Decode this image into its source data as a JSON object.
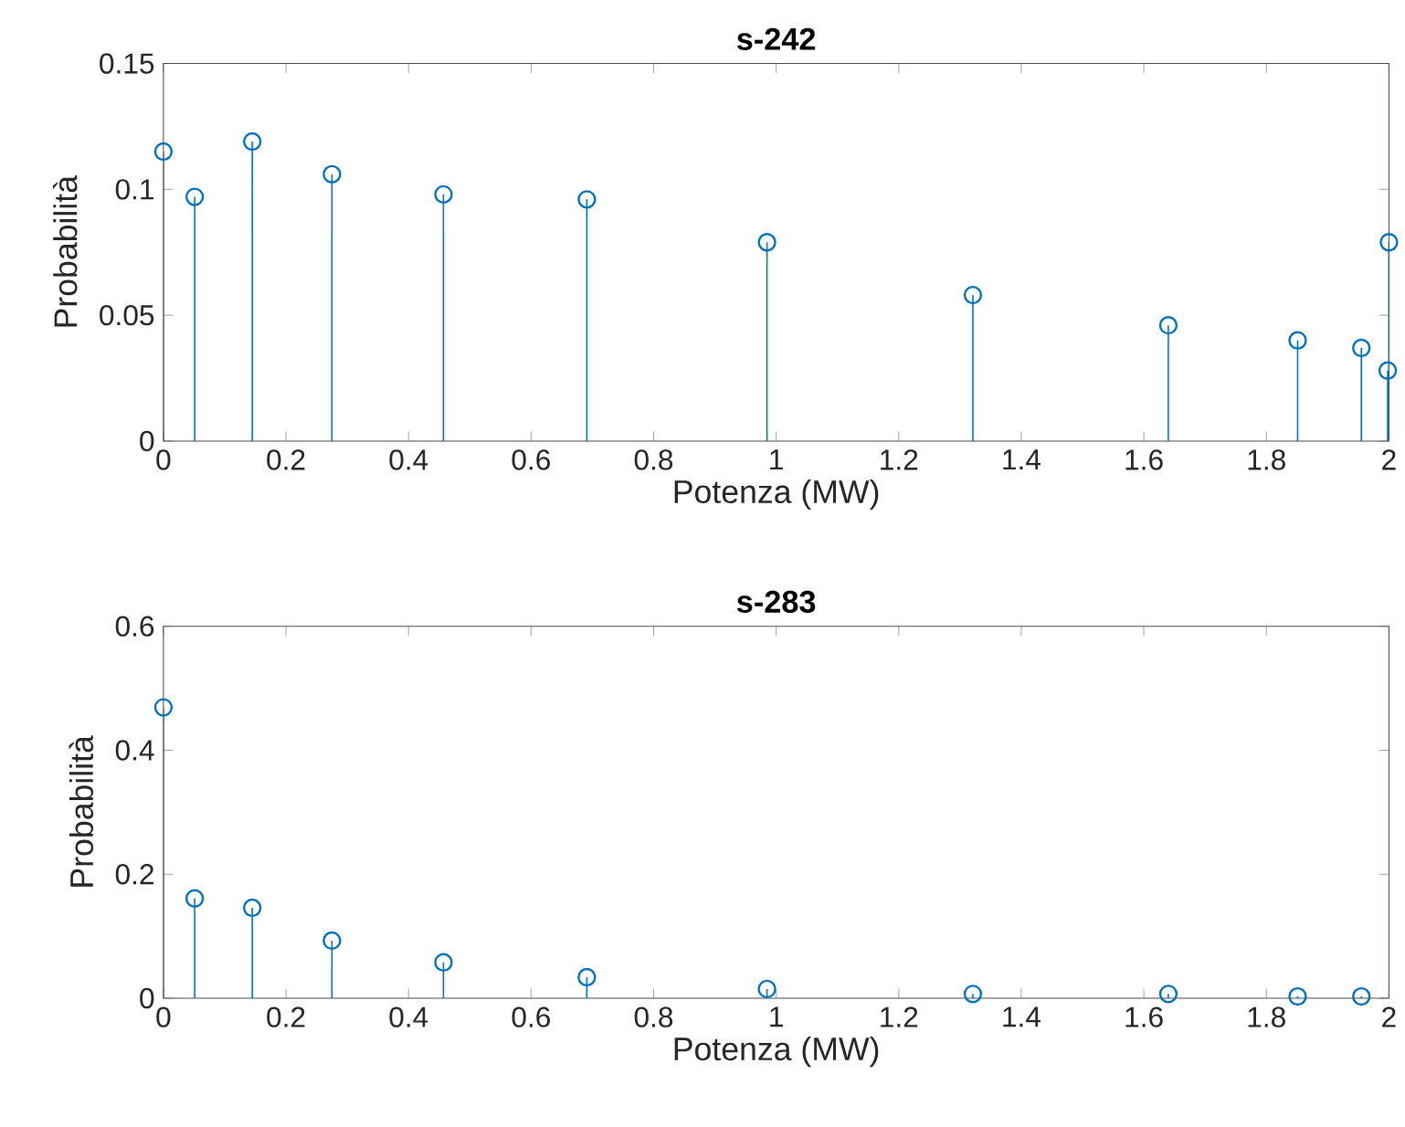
{
  "chart_data": [
    {
      "type": "lollipop",
      "title": "s-242",
      "xlabel": "Potenza (MW)",
      "ylabel": "Probabilità",
      "color": "#0072bd",
      "marker": "circle",
      "x": [
        0,
        0.051,
        0.145,
        0.275,
        0.457,
        0.691,
        0.985,
        1.321,
        1.64,
        1.851,
        1.955,
        1.998,
        2
      ],
      "values": [
        0.115,
        0.097,
        0.119,
        0.106,
        0.098,
        0.096,
        0.079,
        0.058,
        0.046,
        0.04,
        0.037,
        0.028,
        0.079
      ],
      "xlim": [
        0,
        2
      ],
      "ylim": [
        0,
        0.15
      ],
      "xticks": [
        0,
        0.2,
        0.4,
        0.6,
        0.8,
        1,
        1.2,
        1.4,
        1.6,
        1.8,
        2
      ],
      "yticks": [
        0,
        0.05,
        0.1,
        0.15
      ]
    },
    {
      "type": "lollipop",
      "title": "s-283",
      "xlabel": "Potenza (MW)",
      "ylabel": "Probabilità",
      "color": "#0072bd",
      "marker": "circle",
      "x": [
        0,
        0.051,
        0.145,
        0.275,
        0.457,
        0.691,
        0.985,
        1.321,
        1.64,
        1.851,
        1.955
      ],
      "values": [
        0.469,
        0.161,
        0.146,
        0.093,
        0.058,
        0.034,
        0.015,
        0.007,
        0.007,
        0.003,
        0.003
      ],
      "xlim": [
        0,
        2
      ],
      "ylim": [
        0,
        0.6
      ],
      "xticks": [
        0,
        0.2,
        0.4,
        0.6,
        0.8,
        1,
        1.2,
        1.4,
        1.6,
        1.8,
        2
      ],
      "yticks": [
        0,
        0.2,
        0.4,
        0.6
      ]
    }
  ]
}
